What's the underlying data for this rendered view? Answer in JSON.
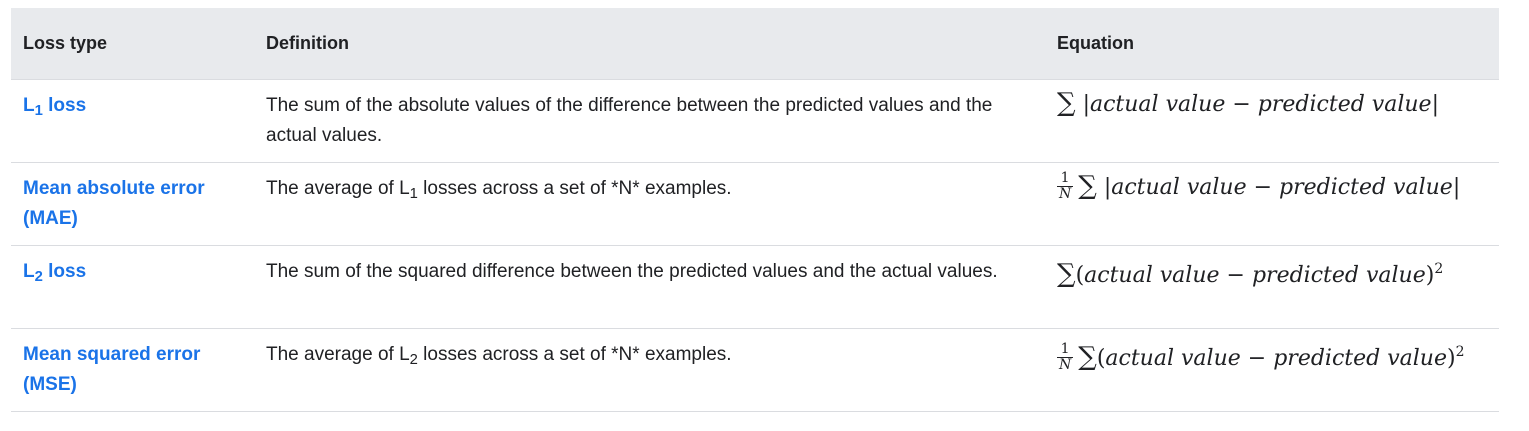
{
  "table": {
    "headers": [
      "Loss type",
      "Definition",
      "Equation"
    ],
    "rows": [
      {
        "loss_main": "L",
        "loss_sub": "1",
        "loss_tail": " loss",
        "def_a": "The sum of the absolute values of the difference between the predicted values and the actual values.",
        "def_sub": "",
        "def_b": "",
        "eq_frac_num": "",
        "eq_frac_den": "",
        "eq_sigma": "∑",
        "eq_open": "|",
        "eq_actual": "actual value",
        "eq_minus": "−",
        "eq_pred": "predicted value",
        "eq_close": "|",
        "eq_sup": ""
      },
      {
        "loss_main": "Mean absolute error (MAE)",
        "loss_sub": "",
        "loss_tail": "",
        "def_a": "The average of L",
        "def_sub": "1",
        "def_b": " losses across a set of *N* examples.",
        "eq_frac_num": "1",
        "eq_frac_den": "N",
        "eq_sigma": "∑",
        "eq_open": "|",
        "eq_actual": "actual value",
        "eq_minus": "−",
        "eq_pred": "predicted value",
        "eq_close": "|",
        "eq_sup": ""
      },
      {
        "loss_main": "L",
        "loss_sub": "2",
        "loss_tail": " loss",
        "def_a": "The sum of the squared difference between the predicted values and the actual values.",
        "def_sub": "",
        "def_b": "",
        "eq_frac_num": "",
        "eq_frac_den": "",
        "eq_sigma": "∑",
        "eq_open": "(",
        "eq_actual": "actual value",
        "eq_minus": "−",
        "eq_pred": "predicted value",
        "eq_close": ")",
        "eq_sup": "2"
      },
      {
        "loss_main": "Mean squared error (MSE)",
        "loss_sub": "",
        "loss_tail": "",
        "def_a": "The average of L",
        "def_sub": "2",
        "def_b": " losses across a set of *N* examples.",
        "eq_frac_num": "1",
        "eq_frac_den": "N",
        "eq_sigma": "∑",
        "eq_open": "(",
        "eq_actual": "actual value",
        "eq_minus": "−",
        "eq_pred": "predicted value",
        "eq_close": ")",
        "eq_sup": "2"
      }
    ]
  },
  "colors": {
    "header_bg": "#e8eaed",
    "link": "#1a73e8",
    "text": "#202124",
    "divider": "#dadce0"
  }
}
